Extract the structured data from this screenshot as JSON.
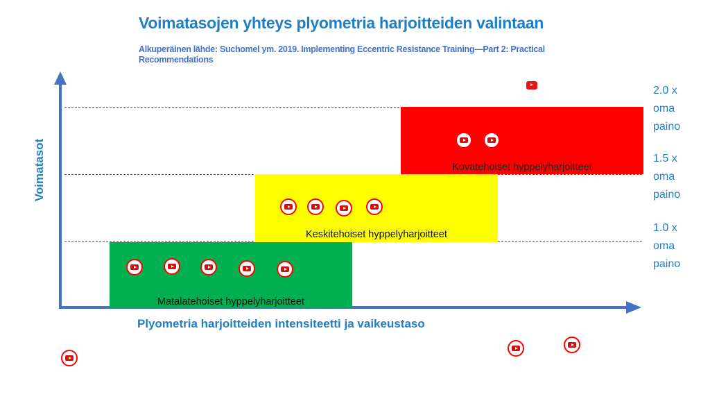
{
  "title": "Voimatasojen yhteys plyometria harjoitteiden valintaan",
  "subtitle": "Alkuperäinen lähde: Suchomel ym. 2019. Implementing Eccentric Resistance Training—Part 2: Practical Recommendations",
  "y_axis_label": "Voimatasot",
  "x_axis_label": "Plyometria harjoitteiden intensiteetti ja vaikeustaso",
  "levels": [
    {
      "text": "2.0 x oma paino",
      "value": 2.0
    },
    {
      "text": "1.5 x oma paino",
      "value": 1.5
    },
    {
      "text": "1.0 x oma paino",
      "value": 1.0
    }
  ],
  "boxes": [
    {
      "label": "Matalatehoiset hyppelyharjoitteet",
      "color": "#00b050",
      "video_count": 5
    },
    {
      "label": "Keskitehoiset hyppelyharjoitteet",
      "color": "#ffff00",
      "video_count": 4
    },
    {
      "label": "Kovatehoiset hyppelyharjoitteet",
      "color": "#ff0000",
      "video_count": 2
    }
  ],
  "icons": {
    "video": "youtube-play-icon"
  },
  "colors": {
    "title": "#1f7fc6",
    "axis": "#4472c4",
    "icon": "#ff0000"
  }
}
